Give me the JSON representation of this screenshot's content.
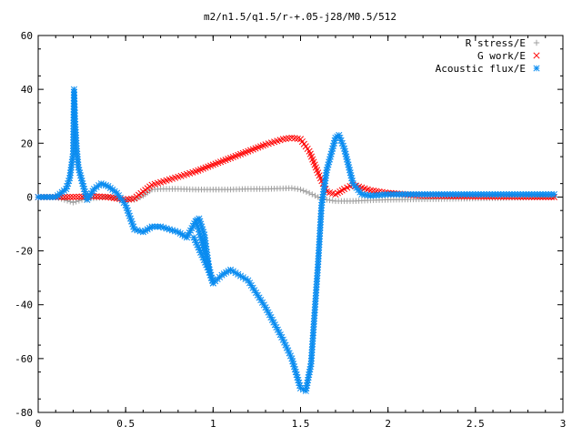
{
  "chart_data": {
    "type": "scatter",
    "title": "m2/n1.5/q1.5/r-+.05-j28/M0.5/512",
    "xlabel": "",
    "ylabel": "",
    "xlim": [
      0,
      3
    ],
    "ylim": [
      -80,
      60
    ],
    "x_ticks": [
      "0",
      "0.5",
      "1",
      "1.5",
      "2",
      "2.5",
      "3"
    ],
    "y_ticks": [
      "60",
      "40",
      "20",
      "0",
      "-20",
      "-40",
      "-60",
      "-80"
    ],
    "grid": false,
    "legend_position": "top-right",
    "series": [
      {
        "name": "R stress/E",
        "marker": "plus",
        "color": "#a0a0a0",
        "x": [
          0.0,
          0.1,
          0.2,
          0.25,
          0.3,
          0.4,
          0.5,
          0.55,
          0.6,
          0.65,
          0.7,
          0.8,
          0.9,
          1.0,
          1.1,
          1.2,
          1.3,
          1.4,
          1.45,
          1.5,
          1.55,
          1.6,
          1.65,
          1.7,
          1.8,
          1.9,
          2.0,
          2.5,
          2.95
        ],
        "y": [
          0,
          0,
          -2,
          -1,
          -0.5,
          0,
          -1,
          -1,
          0.5,
          2.8,
          3,
          3,
          2.8,
          2.8,
          2.8,
          3,
          3,
          3.2,
          3.3,
          2.8,
          1.5,
          0,
          -1,
          -1.5,
          -1.5,
          -1.2,
          -1,
          -0.5,
          0
        ]
      },
      {
        "name": "G work/E",
        "marker": "cross",
        "color": "#ff0000",
        "x": [
          0.0,
          0.2,
          0.3,
          0.4,
          0.5,
          0.55,
          0.6,
          0.65,
          0.7,
          0.8,
          0.9,
          1.0,
          1.1,
          1.2,
          1.3,
          1.4,
          1.45,
          1.5,
          1.55,
          1.6,
          1.65,
          1.7,
          1.75,
          1.8,
          1.85,
          1.9,
          2.0,
          2.2,
          2.5,
          2.95
        ],
        "y": [
          0,
          0,
          0.3,
          0,
          -1,
          -0.5,
          2,
          4.5,
          5.5,
          7.5,
          9.5,
          12,
          14.5,
          17,
          19.5,
          21.5,
          22,
          21.5,
          17,
          9,
          2,
          1,
          3,
          4.5,
          3.5,
          2.5,
          1.5,
          0.5,
          0.2,
          0
        ]
      },
      {
        "name": "Acoustic flux/E",
        "marker": "star",
        "color": "#0a8cf0",
        "x": [
          0.0,
          0.1,
          0.16,
          0.18,
          0.2,
          0.205,
          0.21,
          0.22,
          0.23,
          0.25,
          0.28,
          0.32,
          0.36,
          0.4,
          0.45,
          0.5,
          0.55,
          0.6,
          0.65,
          0.7,
          0.75,
          0.8,
          0.85,
          0.9,
          0.92,
          0.95,
          0.98,
          1.0,
          1.05,
          1.1,
          1.2,
          1.3,
          1.4,
          1.45,
          1.5,
          1.53,
          1.56,
          1.6,
          1.62,
          1.65,
          1.7,
          1.72,
          1.75,
          1.8,
          1.85,
          1.9,
          2.0,
          2.5,
          2.95
        ],
        "y": [
          0,
          0,
          3,
          7,
          16,
          40,
          29,
          18,
          11,
          6,
          -1,
          3,
          5,
          4,
          1.5,
          -3,
          -12,
          -13,
          -11,
          -11,
          -12,
          -13,
          -15,
          -9,
          -8,
          -14,
          -28,
          -32,
          -29,
          -27,
          -31,
          -41,
          -53,
          -60,
          -71,
          -72,
          -62,
          -25,
          -3,
          10,
          22,
          23,
          18,
          5,
          1,
          0.5,
          1,
          1,
          1
        ]
      }
    ],
    "interpolate": {
      "Acoustic flux/E": [
        {
          "x": [
            0.89,
            0.98
          ],
          "y": [
            -15,
            -28
          ]
        },
        {
          "x": [
            0.905,
            1.0
          ],
          "y": [
            -9,
            -32
          ]
        }
      ]
    }
  }
}
